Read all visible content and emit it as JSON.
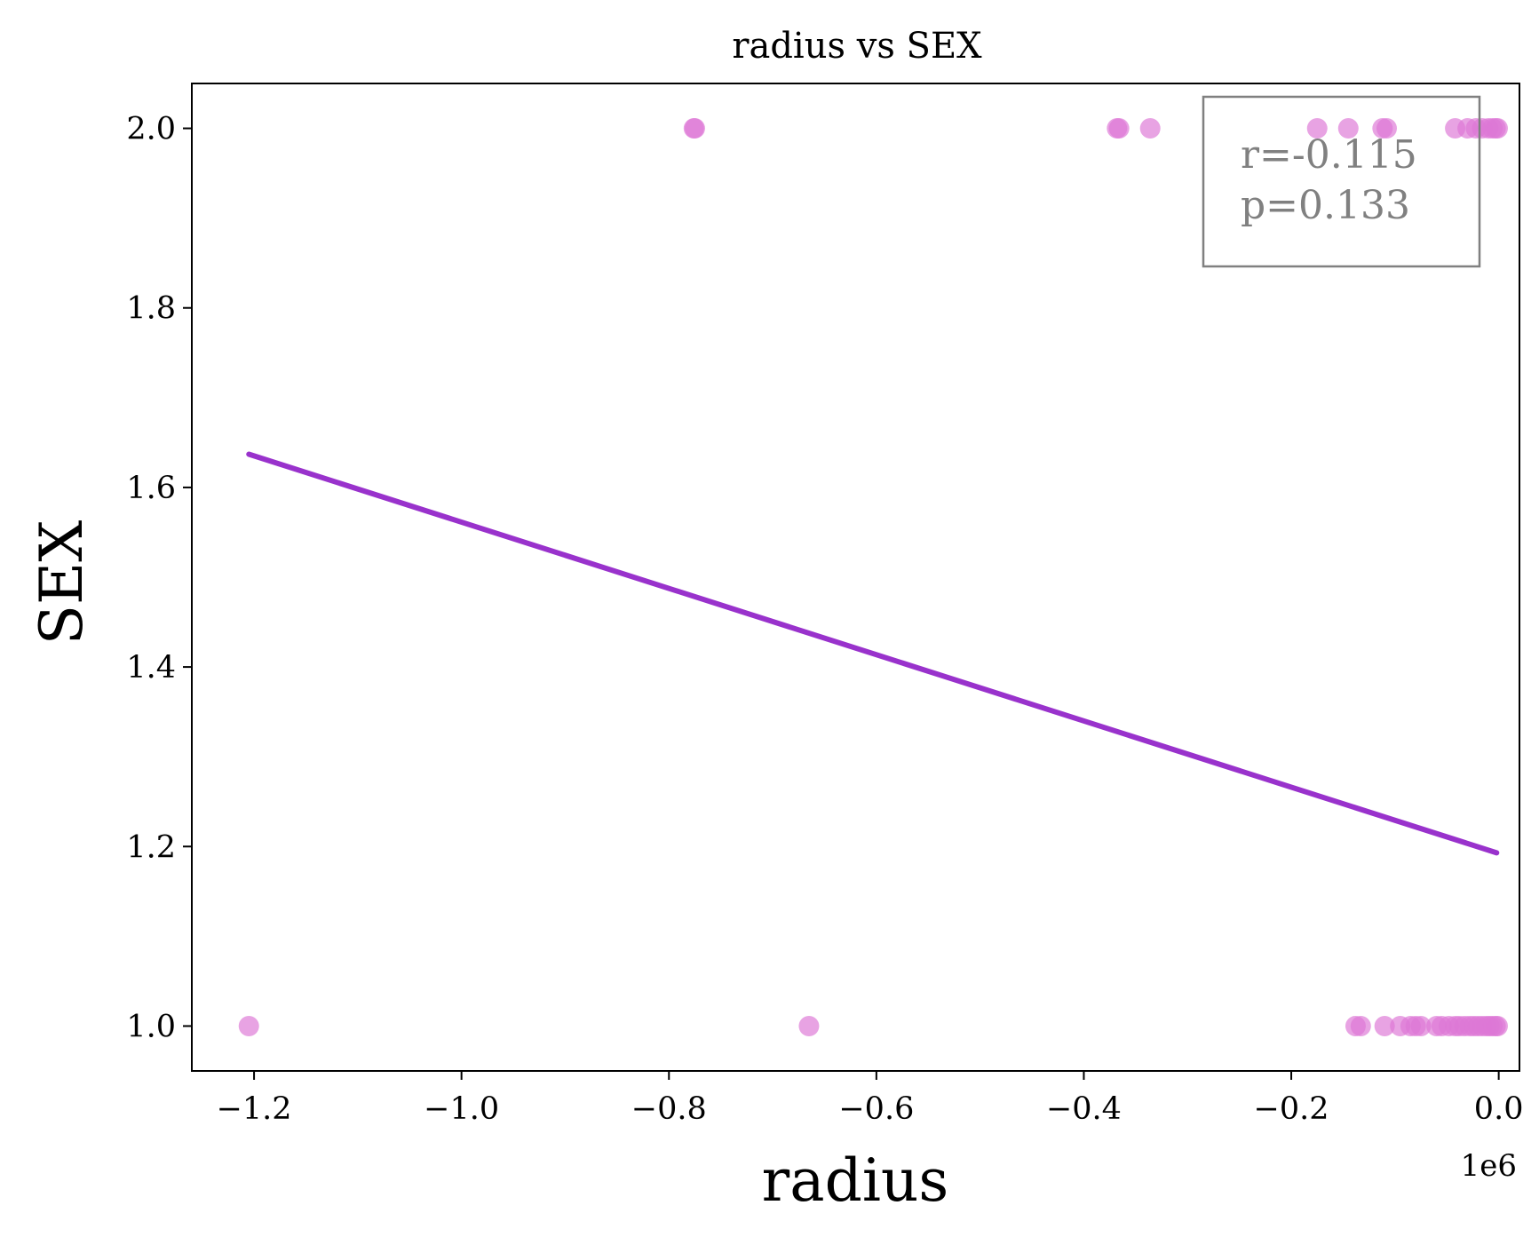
{
  "chart_data": {
    "type": "scatter",
    "title": "radius vs SEX",
    "xlabel": "radius",
    "ylabel": "SEX",
    "x_offset_label": "1e6",
    "xlim": [
      -1260000,
      20000
    ],
    "ylim": [
      0.95,
      2.05
    ],
    "xticks": [
      -1.2,
      -1.0,
      -0.8,
      -0.6,
      -0.4,
      -0.2,
      0.0
    ],
    "xtick_labels": [
      "−1.2",
      "−1.0",
      "−0.8",
      "−0.6",
      "−0.4",
      "−0.2",
      "0.0"
    ],
    "xtick_scale": 1000000,
    "yticks": [
      1.0,
      1.2,
      1.4,
      1.6,
      1.8,
      2.0
    ],
    "ytick_labels": [
      "1.0",
      "1.2",
      "1.4",
      "1.6",
      "1.8",
      "2.0"
    ],
    "grid": false,
    "colors": {
      "points": "#dd77d5",
      "fit_line": "#9932cc",
      "annotation": "#808080",
      "axes": "#000000"
    },
    "series": [
      {
        "type": "scatter",
        "points": [
          [
            -1205000,
            1
          ],
          [
            -665000,
            1
          ],
          [
            -138000,
            1
          ],
          [
            -133000,
            1
          ],
          [
            -110000,
            1
          ],
          [
            -95000,
            1
          ],
          [
            -85000,
            1
          ],
          [
            -80000,
            1
          ],
          [
            -75000,
            1
          ],
          [
            -60000,
            1
          ],
          [
            -55000,
            1
          ],
          [
            -48000,
            1
          ],
          [
            -42000,
            1
          ],
          [
            -38000,
            1
          ],
          [
            -33000,
            1
          ],
          [
            -28000,
            1
          ],
          [
            -24000,
            1
          ],
          [
            -20000,
            1
          ],
          [
            -16000,
            1
          ],
          [
            -12000,
            1
          ],
          [
            -9000,
            1
          ],
          [
            -6000,
            1
          ],
          [
            -3000,
            1
          ],
          [
            -1000,
            1
          ],
          [
            -776000,
            2
          ],
          [
            -775000,
            2
          ],
          [
            -368000,
            2
          ],
          [
            -366000,
            2
          ],
          [
            -336000,
            2
          ],
          [
            -175000,
            2
          ],
          [
            -145000,
            2
          ],
          [
            -112000,
            2
          ],
          [
            -108000,
            2
          ],
          [
            -42000,
            2
          ],
          [
            -30000,
            2
          ],
          [
            -22000,
            2
          ],
          [
            -16000,
            2
          ],
          [
            -10000,
            2
          ],
          [
            -6000,
            2
          ],
          [
            -3000,
            2
          ],
          [
            -1000,
            2
          ]
        ]
      },
      {
        "type": "line",
        "points": [
          [
            -1205000,
            1.637
          ],
          [
            -2000,
            1.193
          ]
        ]
      }
    ],
    "annotation": {
      "r": "r=-0.115",
      "p": "p=0.133",
      "placement": "top-right"
    }
  }
}
